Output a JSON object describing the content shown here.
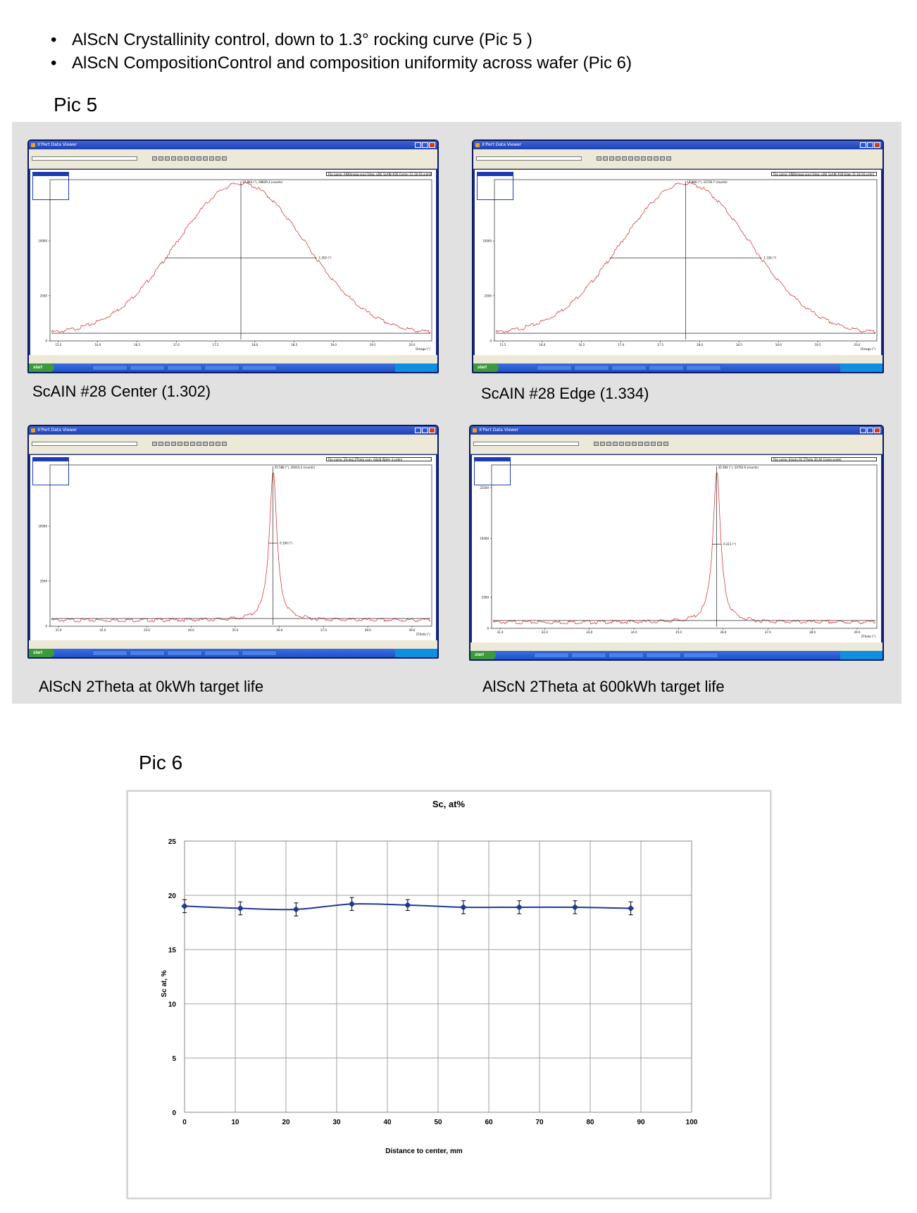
{
  "bullets": [
    "AlScN  Crystallinity control, down to 1.3° rocking curve (Pic 5 )",
    "AlScN  CompositionControl and composition uniformity across wafer (Pic 6)"
  ],
  "pic5_label": "Pic 5",
  "pic6_label": "Pic 6",
  "panels": [
    {
      "caption": "ScAIN #28 Center (1.302)",
      "window_title": "X'Pert Data Viewer",
      "start_label": "start",
      "fwhm_label": "1.302 (°)",
      "peak_label": "17.864 (°), 28829.3 (counts)",
      "file_name": "File name: AlNOmega-scan-5deg_s3W_ScAlN #28 Center 11-18-16.xrdml",
      "x_axis_title": "Omega (°)",
      "x_ticks": [
        "15.5",
        "16.0",
        "16.5",
        "17.0",
        "17.5",
        "18.0",
        "18.5",
        "19.0",
        "19.5",
        "20.0"
      ],
      "y_ticks": [
        "0",
        "2500",
        "10000"
      ]
    },
    {
      "caption": "ScAIN #28 Edge (1.334)",
      "window_title": "X'Pert Data Viewer",
      "start_label": "start",
      "fwhm_label": "1.334 (°)",
      "peak_label": "17.860 (°), 31726.7 (counts)",
      "file_name": "File name: AlNOmega-scan-5deg_s3W_ScAlN #28 Edge 11-18-16.xrdml",
      "x_axis_title": "Omega (°)",
      "x_ticks": [
        "15.5",
        "16.0",
        "16.5",
        "17.0",
        "17.5",
        "18.0",
        "18.5",
        "19.0",
        "19.5",
        "20.0"
      ],
      "y_ticks": [
        "0",
        "2500",
        "10000"
      ]
    },
    {
      "caption": "AlScN 2Theta at 0kWh target life",
      "window_title": "X'Pert Data Viewer",
      "start_label": "start",
      "fwhm_label": "0.190 (°)",
      "peak_label": "35.586 (°), 28243.2 (counts)",
      "file_name": "File name: 20-deg 2Theta scan_AlScN Wafer 3.xrdml",
      "x_axis_title": "2Theta (°)",
      "x_ticks": [
        "31.0",
        "32.0",
        "33.0",
        "34.0",
        "35.0",
        "36.0",
        "37.0",
        "38.0",
        "39.0"
      ],
      "y_ticks": [
        "0",
        "2500",
        "10000"
      ]
    },
    {
      "caption": "AlScN 2Theta at 600kWh target life",
      "window_title": "X'Pert Data Viewer",
      "start_label": "start",
      "fwhm_label": "0.211 (°)",
      "peak_label": "35.582 (°), 33762.6 (counts)",
      "file_name": "File name: Empty 02 2Theta 30-40 Center.xrdml",
      "x_axis_title": "2Theta (°)",
      "x_ticks": [
        "31.0",
        "32.0",
        "33.0",
        "34.0",
        "35.0",
        "36.0",
        "37.0",
        "38.0",
        "39.0"
      ],
      "y_ticks": [
        "0",
        "2500",
        "10000",
        "22500"
      ]
    }
  ],
  "chart_data": {
    "type": "line",
    "title": "Sc, at%",
    "xlabel": "Distance to center, mm",
    "ylabel": "Sc at, %",
    "xlim": [
      0,
      100
    ],
    "ylim": [
      0,
      25
    ],
    "x_ticks": [
      "0",
      "10",
      "20",
      "30",
      "40",
      "50",
      "60",
      "70",
      "80",
      "90",
      "100"
    ],
    "y_ticks": [
      "0",
      "5",
      "10",
      "15",
      "20",
      "25"
    ],
    "grid": true,
    "legend": "none",
    "series": [
      {
        "x": [
          0,
          11,
          22,
          33,
          44,
          55,
          66,
          77,
          88
        ],
        "values": [
          19.0,
          18.8,
          18.7,
          19.2,
          19.1,
          18.9,
          18.9,
          18.9,
          18.8
        ],
        "error": [
          0.6,
          0.6,
          0.6,
          0.6,
          0.5,
          0.6,
          0.6,
          0.6,
          0.6
        ],
        "color": "#1f3a93"
      }
    ]
  }
}
